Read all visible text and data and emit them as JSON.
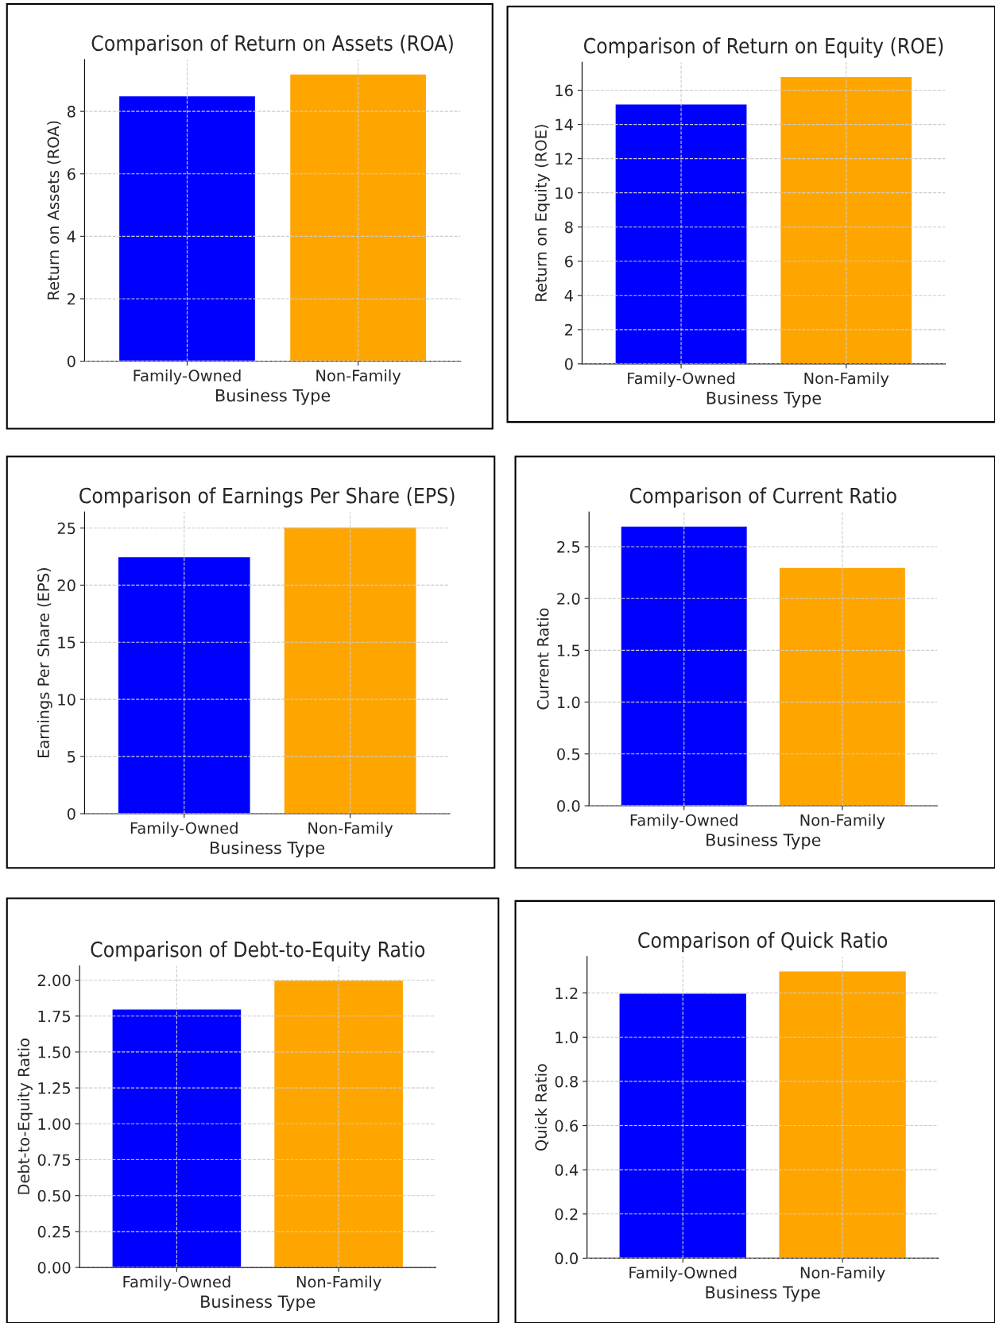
{
  "chart_data": [
    {
      "type": "bar",
      "title": "Comparison of Return on Assets (ROA)",
      "xlabel": "Business Type",
      "ylabel": "Return on Assets (ROA)",
      "categories": [
        "Family-Owned",
        "Non-Family"
      ],
      "colors": [
        "#0000ff",
        "#ffa500"
      ],
      "values": [
        8.5,
        9.2
      ],
      "ylim": [
        0,
        9.66
      ],
      "yticks": [
        0,
        2,
        4,
        6,
        8
      ],
      "grid": true
    },
    {
      "type": "bar",
      "title": "Comparison of Return on Equity (ROE)",
      "xlabel": "Business Type",
      "ylabel": "Return on Equity (ROE)",
      "categories": [
        "Family-Owned",
        "Non-Family"
      ],
      "colors": [
        "#0000ff",
        "#ffa500"
      ],
      "values": [
        15.2,
        16.8
      ],
      "ylim": [
        0,
        17.64
      ],
      "yticks": [
        0,
        2,
        4,
        6,
        8,
        10,
        12,
        14,
        16
      ],
      "grid": true
    },
    {
      "type": "bar",
      "title": "Comparison of Earnings Per Share (EPS)",
      "xlabel": "Business Type",
      "ylabel": "Earnings Per Share (EPS)",
      "categories": [
        "Family-Owned",
        "Non-Family"
      ],
      "colors": [
        "#0000ff",
        "#ffa500"
      ],
      "values": [
        22.5,
        25.1
      ],
      "ylim": [
        0,
        26.4
      ],
      "yticks": [
        0,
        5,
        10,
        15,
        20,
        25
      ],
      "grid": true
    },
    {
      "type": "bar",
      "title": "Comparison of Current Ratio",
      "xlabel": "Business Type",
      "ylabel": "Current Ratio",
      "categories": [
        "Family-Owned",
        "Non-Family"
      ],
      "colors": [
        "#0000ff",
        "#ffa500"
      ],
      "values": [
        2.7,
        2.3
      ],
      "ylim": [
        0,
        2.835
      ],
      "yticks": [
        {
          "value": 0,
          "label": "0.0"
        },
        0.5,
        {
          "value": 1,
          "label": "1.0"
        },
        1.5,
        {
          "value": 2,
          "label": "2.0"
        },
        2.5
      ],
      "grid": true
    },
    {
      "type": "bar",
      "title": "Comparison of Debt-to-Equity Ratio",
      "xlabel": "Business Type",
      "ylabel": "Debt-to-Equity Ratio",
      "categories": [
        "Family-Owned",
        "Non-Family"
      ],
      "colors": [
        "#0000ff",
        "#ffa500"
      ],
      "values": [
        1.8,
        2.0
      ],
      "ylim": [
        0,
        2.1
      ],
      "yticks": [
        {
          "value": 0,
          "label": "0.00"
        },
        {
          "value": 0.25,
          "label": "0.25"
        },
        {
          "value": 0.5,
          "label": "0.50"
        },
        {
          "value": 0.75,
          "label": "0.75"
        },
        {
          "value": 1,
          "label": "1.00"
        },
        {
          "value": 1.25,
          "label": "1.25"
        },
        {
          "value": 1.5,
          "label": "1.50"
        },
        {
          "value": 1.75,
          "label": "1.75"
        },
        {
          "value": 2,
          "label": "2.00"
        }
      ],
      "grid": true
    },
    {
      "type": "bar",
      "title": "Comparison of Quick Ratio",
      "xlabel": "Business Type",
      "ylabel": "Quick Ratio",
      "categories": [
        "Family-Owned",
        "Non-Family"
      ],
      "colors": [
        "#0000ff",
        "#ffa500"
      ],
      "values": [
        1.2,
        1.3
      ],
      "ylim": [
        0,
        1.365
      ],
      "yticks": [
        {
          "value": 0,
          "label": "0.0"
        },
        0.2,
        0.4,
        0.6,
        0.8,
        {
          "value": 1,
          "label": "1.0"
        },
        1.2
      ],
      "grid": true
    }
  ]
}
